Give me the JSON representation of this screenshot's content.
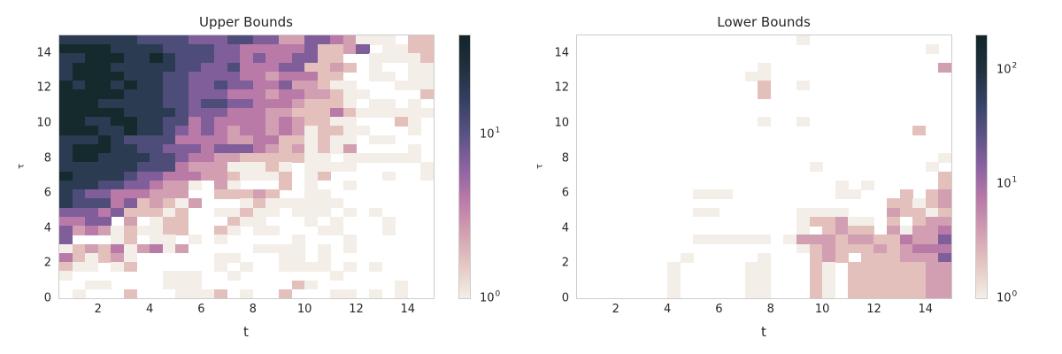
{
  "palette": [
    "#ffffff",
    "#f3efe8",
    "#e4c0bc",
    "#d29fb2",
    "#b97aa8",
    "#7f5e9a",
    "#4e4c78",
    "#2a3b52",
    "#142a2d"
  ],
  "colorbar_gradient": [
    "#f3efe8",
    "#e4c8c1",
    "#d29fb2",
    "#b97aa8",
    "#8a62a0",
    "#5a5284",
    "#354063",
    "#20303e",
    "#122528"
  ],
  "chart_data": [
    {
      "type": "heatmap",
      "title": "Upper Bounds",
      "xlabel": "t",
      "ylabel": "τ",
      "xlim": [
        0.5,
        15
      ],
      "ylim": [
        0,
        15
      ],
      "xticks": [
        "2",
        "4",
        "6",
        "8",
        "10",
        "12",
        "14"
      ],
      "xtick_values": [
        2,
        4,
        6,
        8,
        10,
        12,
        14
      ],
      "yticks": [
        "0",
        "2",
        "4",
        "6",
        "8",
        "10",
        "12",
        "14"
      ],
      "ytick_values": [
        0,
        2,
        4,
        6,
        8,
        10,
        12,
        14
      ],
      "colorbar": {
        "scale": "log",
        "ticks": [
          {
            "base": "10",
            "exp": "0",
            "value": 1
          },
          {
            "base": "10",
            "exp": "1",
            "value": 10
          }
        ],
        "range": [
          1,
          40
        ]
      },
      "grid": false,
      "n_cols": 29,
      "n_rows": 29,
      "rows_top_to_bottom": [
        "77777766665556655335543111022",
        "88887777666655444445223501122",
        "77888778766655454455220011112",
        "78887777766556444552232010011",
        "78888777665555443444220011011",
        "87887877665565544533211000111",
        "88888777665554443443321100002",
        "88877777665665544432221011010",
        "88888777765554443322242111111",
        "88778877664544443432211000210",
        "88877877654543443431221100010",
        "77787666644443344221211011000",
        "78887766555455543231213000010",
        "78877776654433222221101111110",
        "77777766643331112101111000001",
        "87777655444332111201200001001",
        "77766554331031000201001000000",
        "76554443330022232001100000000",
        "76664523213000121111110000000",
        "55545222120011211011101010000",
        "44550301220002110001010001000",
        "53431211220021011000110001000",
        "50001201101010000010001000000",
        "12324134130000011110101000000",
        "42123100000011000110100000000",
        "21101200000010100111101010000",
        "10000000111001000000010000000",
        "00110000111000000021000000100",
        "01000200011120100200011010100"
      ]
    },
    {
      "type": "heatmap",
      "title": "Lower Bounds",
      "xlabel": "t",
      "ylabel": "τ",
      "xlim": [
        0.5,
        15
      ],
      "ylim": [
        0,
        15
      ],
      "xticks": [
        "2",
        "4",
        "6",
        "8",
        "10",
        "12",
        "14"
      ],
      "xtick_values": [
        2,
        4,
        6,
        8,
        10,
        12,
        14
      ],
      "yticks": [
        "0",
        "2",
        "4",
        "6",
        "8",
        "10",
        "12",
        "14"
      ],
      "ytick_values": [
        0,
        2,
        4,
        6,
        8,
        10,
        12,
        14
      ],
      "colorbar": {
        "scale": "log",
        "ticks": [
          {
            "base": "10",
            "exp": "0",
            "value": 1
          },
          {
            "base": "10",
            "exp": "1",
            "value": 10
          },
          {
            "base": "10",
            "exp": "2",
            "value": 100
          }
        ],
        "range": [
          1,
          200
        ]
      },
      "grid": false,
      "n_cols": 29,
      "n_rows": 29,
      "rows_top_to_bottom": [
        "00000000000000000100000000000",
        "00000000000000000000000000010",
        "00000000000000000000000000000",
        "00000000000000100000000000003",
        "00000000000001100000000000000",
        "00000000000000200100000000000",
        "00000000000000200000000000000",
        "00000000000000000000000000000",
        "00000000000000000000000000000",
        "00000000000000100100000000000",
        "00000000000000000000000000200",
        "00000000000000000000000000000",
        "00000000000000000000000000000",
        "00000000000000000000000000001",
        "00000000000000000010000000010",
        "00000000000000000000000000002",
        "00000000000000000000101000002",
        "00000000011100000000110002023",
        "00000000000000000000000022123",
        "00000000011000000111100032212",
        "00000000000000000122311020233",
        "00000000000000000102322031334",
        "00000000011111101333233224335",
        "00000000000000000123222323444",
        "00000000100000100023202223335",
        "00000001000001100021022222233",
        "00000001000001100021022222233",
        "00000001000001100021022222233",
        "00000001000001100021022222233"
      ]
    }
  ],
  "panels": [
    {
      "title": "Upper Bounds",
      "xlabel": "t",
      "ylabel": "τ"
    },
    {
      "title": "Lower Bounds",
      "xlabel": "t",
      "ylabel": "τ"
    }
  ]
}
